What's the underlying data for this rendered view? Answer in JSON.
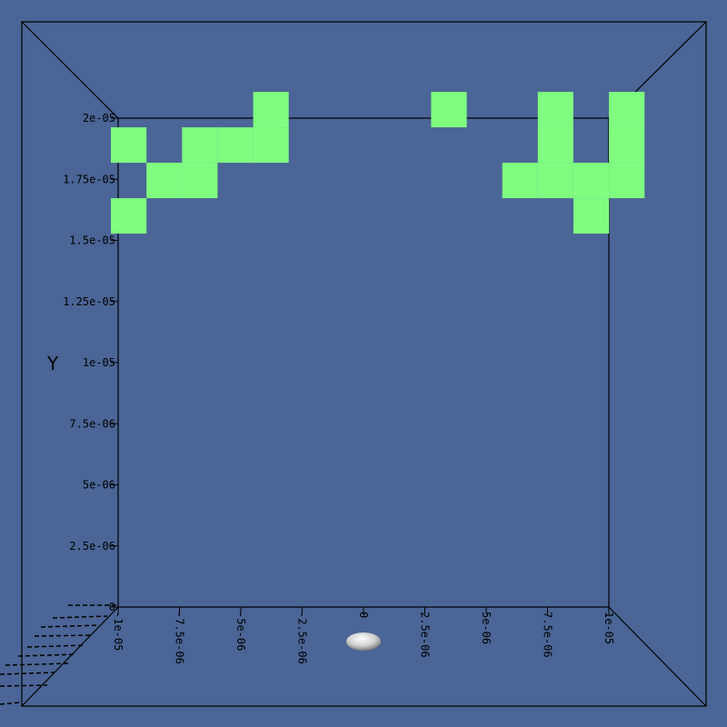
{
  "colors": {
    "background": "#4a6596",
    "cell": "#80fd80",
    "frame": "#000000",
    "probe": "#d8d8d8"
  },
  "chart_data": {
    "type": "heatmap",
    "title": "",
    "xlabel": "",
    "ylabel": "Y",
    "xlim": [
      -1e-05,
      1e-05
    ],
    "ylim": [
      0,
      2e-05
    ],
    "grid": false,
    "cell_size": 1.45e-06,
    "x_ticks": [
      "-1e-05",
      "-7.5e-06",
      "-5e-06",
      "-2.5e-06",
      "0",
      "2.5e-06",
      "5e-06",
      "7.5e-06",
      "1e-05"
    ],
    "x_tick_values": [
      -1e-05,
      -7.5e-06,
      -5e-06,
      -2.5e-06,
      0,
      2.5e-06,
      5e-06,
      7.5e-06,
      1e-05
    ],
    "y_ticks": [
      "0",
      "2.5e-06",
      "5e-06",
      "7.5e-06",
      "1e-05",
      "1.25e-05",
      "1.5e-05",
      "1.75e-05",
      "2e-05"
    ],
    "y_tick_values": [
      0,
      2.5e-06,
      5e-06,
      7.5e-06,
      1e-05,
      1.25e-05,
      1.5e-05,
      1.75e-05,
      2e-05
    ],
    "cells": [
      {
        "x": -9.57e-06,
        "y": 1.6e-05
      },
      {
        "x": -9.57e-06,
        "y": 1.89e-05
      },
      {
        "x": -8.12e-06,
        "y": 1.745e-05
      },
      {
        "x": -6.67e-06,
        "y": 1.745e-05
      },
      {
        "x": -6.67e-06,
        "y": 1.89e-05
      },
      {
        "x": -5.22e-06,
        "y": 1.89e-05
      },
      {
        "x": -3.77e-06,
        "y": 1.89e-05
      },
      {
        "x": -3.77e-06,
        "y": 2.035e-05
      },
      {
        "x": 3.48e-06,
        "y": 2.035e-05
      },
      {
        "x": 6.38e-06,
        "y": 1.745e-05
      },
      {
        "x": 7.83e-06,
        "y": 1.745e-05
      },
      {
        "x": 7.83e-06,
        "y": 1.89e-05
      },
      {
        "x": 7.83e-06,
        "y": 2.035e-05
      },
      {
        "x": 9.28e-06,
        "y": 1.6e-05
      },
      {
        "x": 9.28e-06,
        "y": 1.745e-05
      },
      {
        "x": 1.073e-05,
        "y": 1.745e-05
      },
      {
        "x": 1.073e-05,
        "y": 1.89e-05
      },
      {
        "x": 1.073e-05,
        "y": 2.035e-05
      }
    ]
  }
}
